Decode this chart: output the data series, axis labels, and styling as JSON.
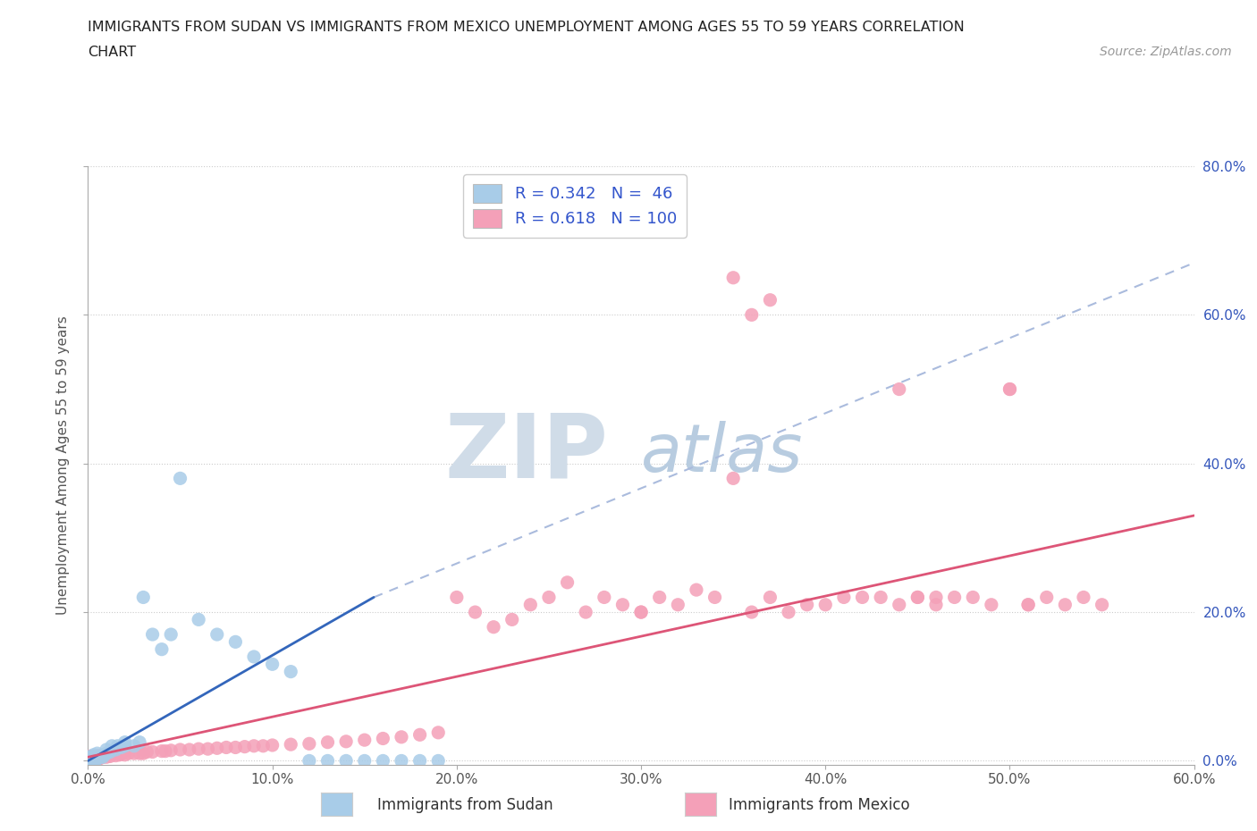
{
  "title_line1": "IMMIGRANTS FROM SUDAN VS IMMIGRANTS FROM MEXICO UNEMPLOYMENT AMONG AGES 55 TO 59 YEARS CORRELATION",
  "title_line2": "CHART",
  "source": "Source: ZipAtlas.com",
  "ylabel": "Unemployment Among Ages 55 to 59 years",
  "sudan_R": 0.342,
  "sudan_N": 46,
  "mexico_R": 0.618,
  "mexico_N": 100,
  "sudan_color": "#a8cce8",
  "mexico_color": "#f4a0b8",
  "sudan_line_color": "#3366bb",
  "mexico_line_color": "#dd5577",
  "sudan_dashed_color": "#aabbdd",
  "xlim": [
    0.0,
    0.6
  ],
  "ylim": [
    -0.005,
    0.8
  ],
  "x_ticks": [
    0.0,
    0.1,
    0.2,
    0.3,
    0.4,
    0.5,
    0.6
  ],
  "y_ticks": [
    0.0,
    0.2,
    0.4,
    0.6,
    0.8
  ],
  "background_color": "#ffffff",
  "grid_color": "#cccccc",
  "watermark_zip": "ZIP",
  "watermark_atlas": "atlas",
  "watermark_color_zip": "#d0dce8",
  "watermark_color_atlas": "#b8cce0",
  "watermark_fontsize": 72,
  "legend_label1": "R = 0.342   N =  46",
  "legend_label2": "R = 0.618   N = 100",
  "bottom_label_sudan": "Immigrants from Sudan",
  "bottom_label_mexico": "Immigrants from Mexico",
  "sudan_x": [
    0.0,
    0.0,
    0.001,
    0.001,
    0.002,
    0.002,
    0.003,
    0.003,
    0.004,
    0.004,
    0.005,
    0.005,
    0.006,
    0.007,
    0.008,
    0.009,
    0.01,
    0.01,
    0.012,
    0.013,
    0.015,
    0.016,
    0.018,
    0.02,
    0.02,
    0.025,
    0.028,
    0.03,
    0.035,
    0.04,
    0.045,
    0.05,
    0.06,
    0.07,
    0.08,
    0.09,
    0.1,
    0.11,
    0.12,
    0.13,
    0.14,
    0.15,
    0.16,
    0.17,
    0.18,
    0.19
  ],
  "sudan_y": [
    0.0,
    0.005,
    0.0,
    0.003,
    0.0,
    0.005,
    0.002,
    0.008,
    0.0,
    0.005,
    0.003,
    0.01,
    0.004,
    0.006,
    0.005,
    0.008,
    0.01,
    0.015,
    0.012,
    0.02,
    0.015,
    0.02,
    0.018,
    0.02,
    0.025,
    0.02,
    0.025,
    0.22,
    0.17,
    0.15,
    0.17,
    0.38,
    0.19,
    0.17,
    0.16,
    0.14,
    0.13,
    0.12,
    0.0,
    0.0,
    0.0,
    0.0,
    0.0,
    0.0,
    0.0,
    0.0
  ],
  "mexico_x": [
    0.0,
    0.0,
    0.0,
    0.001,
    0.001,
    0.002,
    0.002,
    0.003,
    0.003,
    0.004,
    0.004,
    0.005,
    0.005,
    0.006,
    0.006,
    0.007,
    0.008,
    0.009,
    0.01,
    0.01,
    0.012,
    0.013,
    0.015,
    0.017,
    0.018,
    0.02,
    0.022,
    0.025,
    0.028,
    0.03,
    0.032,
    0.035,
    0.04,
    0.042,
    0.045,
    0.05,
    0.055,
    0.06,
    0.065,
    0.07,
    0.075,
    0.08,
    0.085,
    0.09,
    0.095,
    0.1,
    0.11,
    0.12,
    0.13,
    0.14,
    0.15,
    0.16,
    0.17,
    0.18,
    0.19,
    0.2,
    0.21,
    0.22,
    0.23,
    0.24,
    0.25,
    0.26,
    0.27,
    0.28,
    0.29,
    0.3,
    0.31,
    0.32,
    0.33,
    0.34,
    0.35,
    0.36,
    0.37,
    0.38,
    0.39,
    0.4,
    0.41,
    0.42,
    0.43,
    0.44,
    0.45,
    0.46,
    0.47,
    0.48,
    0.49,
    0.5,
    0.51,
    0.52,
    0.53,
    0.54,
    0.55,
    0.35,
    0.36,
    0.37,
    0.44,
    0.45,
    0.46,
    0.5,
    0.51,
    0.3
  ],
  "mexico_y": [
    0.0,
    0.003,
    0.006,
    0.0,
    0.004,
    0.002,
    0.006,
    0.001,
    0.005,
    0.003,
    0.007,
    0.002,
    0.006,
    0.003,
    0.007,
    0.004,
    0.005,
    0.006,
    0.005,
    0.008,
    0.006,
    0.008,
    0.007,
    0.008,
    0.009,
    0.008,
    0.01,
    0.01,
    0.01,
    0.01,
    0.012,
    0.012,
    0.013,
    0.013,
    0.014,
    0.015,
    0.015,
    0.016,
    0.016,
    0.017,
    0.018,
    0.018,
    0.019,
    0.02,
    0.02,
    0.021,
    0.022,
    0.023,
    0.025,
    0.026,
    0.028,
    0.03,
    0.032,
    0.035,
    0.038,
    0.22,
    0.2,
    0.18,
    0.19,
    0.21,
    0.22,
    0.24,
    0.2,
    0.22,
    0.21,
    0.2,
    0.22,
    0.21,
    0.23,
    0.22,
    0.38,
    0.2,
    0.22,
    0.2,
    0.21,
    0.21,
    0.22,
    0.22,
    0.22,
    0.21,
    0.22,
    0.21,
    0.22,
    0.22,
    0.21,
    0.5,
    0.21,
    0.22,
    0.21,
    0.22,
    0.21,
    0.65,
    0.6,
    0.62,
    0.5,
    0.22,
    0.22,
    0.5,
    0.21,
    0.2
  ]
}
